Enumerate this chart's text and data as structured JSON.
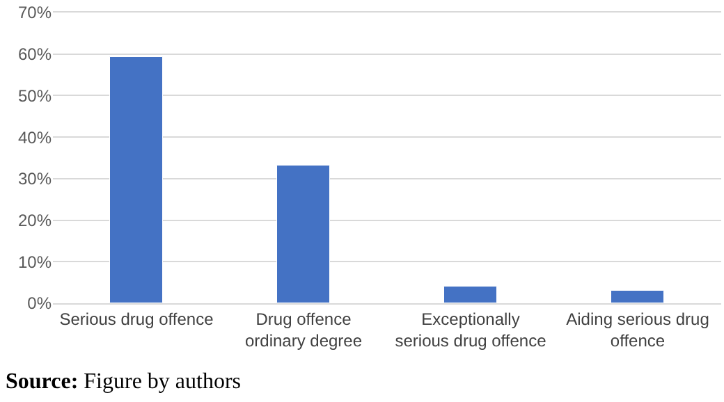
{
  "chart_data": {
    "type": "bar",
    "categories": [
      "Serious drug offence",
      "Drug offence ordinary degree",
      "Exceptionally serious drug offence",
      "Aiding serious drug offence"
    ],
    "values": [
      59.3,
      33.2,
      4.0,
      2.9
    ],
    "color": "#4472c4",
    "ylim": [
      0,
      70
    ],
    "yticks": [
      {
        "value": 0,
        "label": "0%"
      },
      {
        "value": 10,
        "label": "10%"
      },
      {
        "value": 20,
        "label": "20%"
      },
      {
        "value": 30,
        "label": "30%"
      },
      {
        "value": 40,
        "label": "40%"
      },
      {
        "value": 50,
        "label": "50%"
      },
      {
        "value": 60,
        "label": "60%"
      },
      {
        "value": 70,
        "label": "70%"
      }
    ],
    "grid": "y",
    "annotations": [
      "Source: Figure by authors"
    ]
  }
}
